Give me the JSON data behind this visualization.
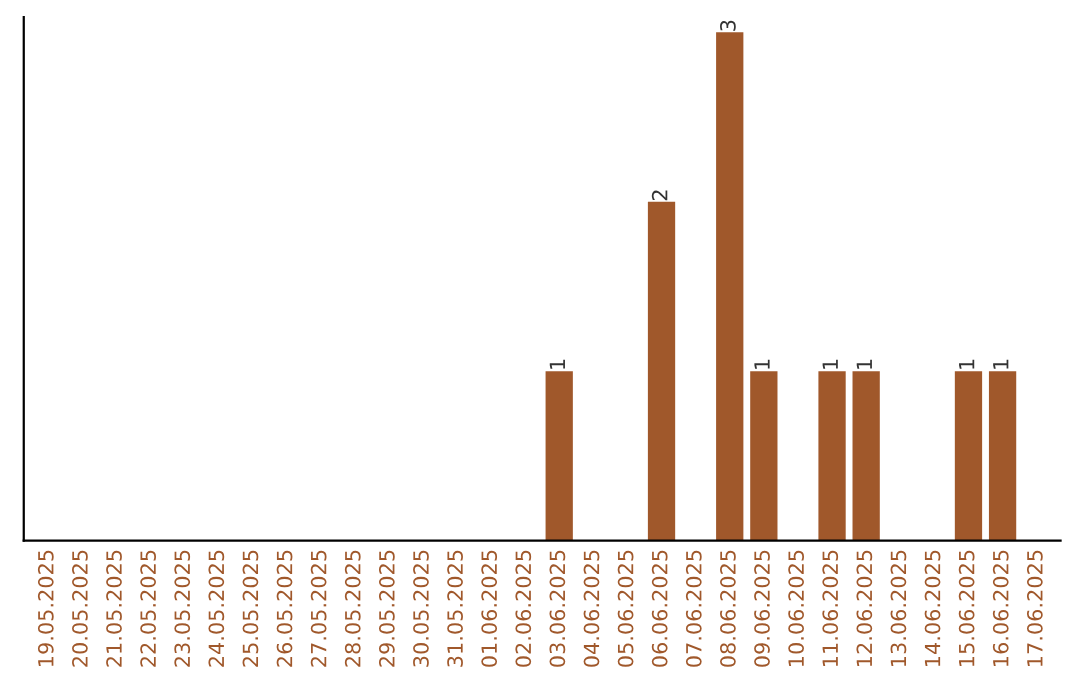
{
  "chart_data": {
    "type": "bar",
    "categories": [
      "19.05.2025",
      "20.05.2025",
      "21.05.2025",
      "22.05.2025",
      "23.05.2025",
      "24.05.2025",
      "25.05.2025",
      "26.05.2025",
      "27.05.2025",
      "28.05.2025",
      "29.05.2025",
      "30.05.2025",
      "31.05.2025",
      "01.06.2025",
      "02.06.2025",
      "03.06.2025",
      "04.06.2025",
      "05.06.2025",
      "06.06.2025",
      "07.06.2025",
      "08.06.2025",
      "09.06.2025",
      "10.06.2025",
      "11.06.2025",
      "12.06.2025",
      "13.06.2025",
      "14.06.2025",
      "15.06.2025",
      "16.06.2025",
      "17.06.2025"
    ],
    "values": [
      null,
      null,
      null,
      null,
      null,
      null,
      null,
      null,
      null,
      null,
      null,
      null,
      null,
      null,
      null,
      1,
      null,
      null,
      2,
      null,
      3,
      1,
      null,
      1,
      1,
      null,
      null,
      1,
      1,
      null
    ],
    "data_labels": true,
    "color": "#a0582b",
    "tick_labels": "x",
    "grid": false,
    "legend": false
  }
}
